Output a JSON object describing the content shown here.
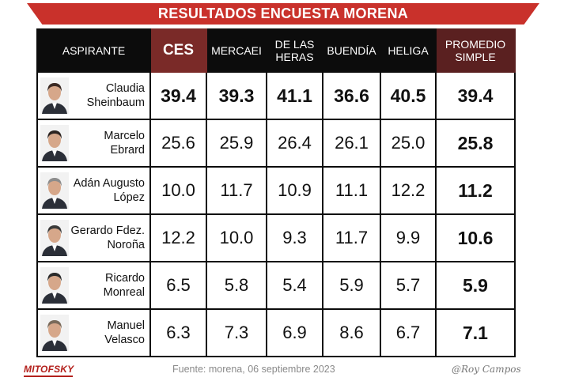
{
  "title": "RESULTADOS ENCUESTA MORENA",
  "columns": {
    "aspirante": "ASPIRANTE",
    "ces": "CES",
    "mercaei": "MERCAEI",
    "heras_1": "DE LAS",
    "heras_2": "HERAS",
    "buendia": "BUENDÍA",
    "heliga": "HELIGA",
    "promedio_1": "PROMEDIO",
    "promedio_2": "SIMPLE"
  },
  "chart_data": {
    "type": "table",
    "title": "RESULTADOS ENCUESTA MORENA",
    "header": [
      "ASPIRANTE",
      "CES",
      "MERCAEI",
      "DE LAS HERAS",
      "BUENDÍA",
      "HELIGA",
      "PROMEDIO SIMPLE"
    ],
    "rows": [
      {
        "line1": "Claudia",
        "line2": "Sheinbaum",
        "values": [
          "39.4",
          "39.3",
          "41.1",
          "36.6",
          "40.5"
        ],
        "promedio": "39.4"
      },
      {
        "line1": "Marcelo",
        "line2": "Ebrard",
        "values": [
          "25.6",
          "25.9",
          "26.4",
          "26.1",
          "25.0"
        ],
        "promedio": "25.8"
      },
      {
        "line1": "Adán Augusto",
        "line2": "López",
        "values": [
          "10.0",
          "11.7",
          "10.9",
          "11.1",
          "12.2"
        ],
        "promedio": "11.2"
      },
      {
        "line1": "Gerardo Fdez.",
        "line2": "Noroña",
        "values": [
          "12.2",
          "10.0",
          "9.3",
          "11.7",
          "9.9"
        ],
        "promedio": "10.6"
      },
      {
        "line1": "Ricardo",
        "line2": "Monreal",
        "values": [
          "6.5",
          "5.8",
          "5.4",
          "5.9",
          "5.7"
        ],
        "promedio": "5.9"
      },
      {
        "line1": "Manuel",
        "line2": "Velasco",
        "values": [
          "6.3",
          "7.3",
          "6.9",
          "8.6",
          "6.7"
        ],
        "promedio": "7.1"
      }
    ]
  },
  "footer": {
    "logo": "MITOFSKY",
    "source": "Fuente: morena,  06 septiembre  2023",
    "signature": "@Roy Campos"
  },
  "colors": {
    "banner": "#c9312b",
    "header_bg": "#0c0c0c",
    "ces_bg": "#7a2a28",
    "promedio_bg": "#5a2020",
    "logo": "#b3201c"
  }
}
